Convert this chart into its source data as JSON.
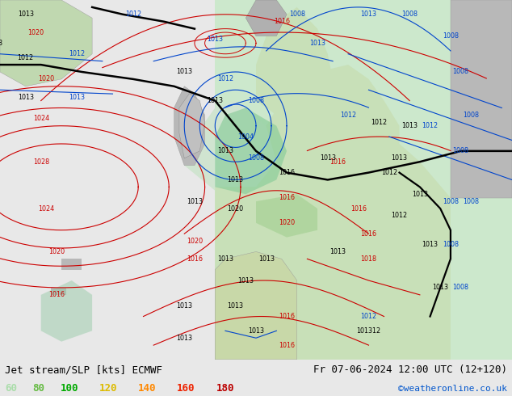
{
  "title_left": "Jet stream/SLP [kts] ECMWF",
  "title_right": "Fr 07-06-2024 12:00 UTC (12+120)",
  "credit": "©weatheronline.co.uk",
  "legend_values": [
    "60",
    "80",
    "100",
    "120",
    "140",
    "160",
    "180"
  ],
  "legend_colors": [
    "#aaddaa",
    "#66bb44",
    "#00aa00",
    "#ddbb00",
    "#ff8800",
    "#ee2200",
    "#bb0000"
  ],
  "fig_width": 6.34,
  "fig_height": 4.9,
  "title_fontsize": 9,
  "legend_fontsize": 9,
  "credit_fontsize": 8,
  "ocean_color": "#dce8dc",
  "left_ocean_color": "#e0e0e0",
  "land_green_color": "#b8ddb8",
  "land_gray_color": "#b8b8b8",
  "bottom_bar_color": "#e8e8e8",
  "green_shade_color": "#99ddbb"
}
